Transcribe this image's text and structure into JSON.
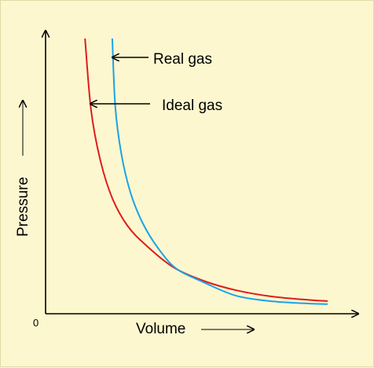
{
  "chart_data": {
    "type": "line",
    "title": "",
    "xlabel": "Volume",
    "ylabel": "Pressure",
    "origin_label": "0",
    "xlim": [
      0,
      1
    ],
    "ylim": [
      0,
      1
    ],
    "grid": false,
    "axis_ticks": "none",
    "annotations": [
      {
        "text": "Real gas",
        "points_to_series": "Real gas"
      },
      {
        "text": "Ideal gas",
        "points_to_series": "Ideal gas"
      }
    ],
    "series": [
      {
        "name": "Ideal gas",
        "color": "#e01b1b",
        "x": [
          0.13,
          0.15,
          0.18,
          0.22,
          0.27,
          0.33,
          0.42,
          0.52,
          0.63,
          0.75,
          0.87,
          0.93
        ],
        "y": [
          1.0,
          0.74,
          0.56,
          0.42,
          0.32,
          0.25,
          0.17,
          0.12,
          0.085,
          0.062,
          0.05,
          0.046
        ]
      },
      {
        "name": "Real gas",
        "color": "#1aa3e8",
        "x": [
          0.22,
          0.23,
          0.25,
          0.28,
          0.32,
          0.37,
          0.43,
          0.52,
          0.63,
          0.75,
          0.87,
          0.93
        ],
        "y": [
          1.0,
          0.75,
          0.58,
          0.44,
          0.33,
          0.24,
          0.165,
          0.115,
          0.065,
          0.045,
          0.037,
          0.035
        ]
      }
    ]
  }
}
